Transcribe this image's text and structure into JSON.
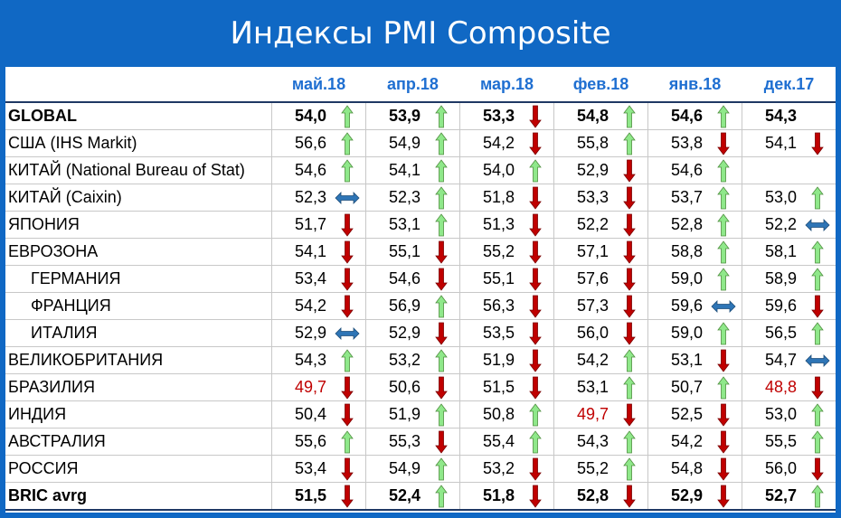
{
  "title": "Индексы PMI Composite",
  "chart_data": {
    "type": "table",
    "columns": [
      "май.18",
      "апр.18",
      "мар.18",
      "фев.18",
      "янв.18",
      "дек.17"
    ],
    "rows": [
      {
        "name": "GLOBAL",
        "bold": true,
        "indent": false,
        "values": [
          "54,0",
          "53,9",
          "53,3",
          "54,8",
          "54,6",
          "54,3"
        ],
        "trends": [
          "up",
          "up",
          "down",
          "up",
          "up",
          ""
        ],
        "red": [
          false,
          false,
          false,
          false,
          false,
          false
        ]
      },
      {
        "name": "США (IHS Markit)",
        "bold": false,
        "indent": false,
        "values": [
          "56,6",
          "54,9",
          "54,2",
          "55,8",
          "53,8",
          "54,1"
        ],
        "trends": [
          "up",
          "up",
          "down",
          "up",
          "down",
          "down"
        ],
        "red": [
          false,
          false,
          false,
          false,
          false,
          false
        ]
      },
      {
        "name": "КИТАЙ (National Bureau of Stat)",
        "bold": false,
        "indent": false,
        "values": [
          "54,6",
          "54,1",
          "54,0",
          "52,9",
          "54,6",
          ""
        ],
        "trends": [
          "up",
          "up",
          "up",
          "down",
          "up",
          ""
        ],
        "red": [
          false,
          false,
          false,
          false,
          false,
          false
        ]
      },
      {
        "name": "КИТАЙ (Caixin)",
        "bold": false,
        "indent": false,
        "values": [
          "52,3",
          "52,3",
          "51,8",
          "53,3",
          "53,7",
          "53,0"
        ],
        "trends": [
          "flat",
          "up",
          "down",
          "down",
          "up",
          "up"
        ],
        "red": [
          false,
          false,
          false,
          false,
          false,
          false
        ]
      },
      {
        "name": "ЯПОНИЯ",
        "bold": false,
        "indent": false,
        "values": [
          "51,7",
          "53,1",
          "51,3",
          "52,2",
          "52,8",
          "52,2"
        ],
        "trends": [
          "down",
          "up",
          "down",
          "down",
          "up",
          "flat"
        ],
        "red": [
          false,
          false,
          false,
          false,
          false,
          false
        ]
      },
      {
        "name": "ЕВРОЗОНА",
        "bold": false,
        "indent": false,
        "values": [
          "54,1",
          "55,1",
          "55,2",
          "57,1",
          "58,8",
          "58,1"
        ],
        "trends": [
          "down",
          "down",
          "down",
          "down",
          "up",
          "up"
        ],
        "red": [
          false,
          false,
          false,
          false,
          false,
          false
        ]
      },
      {
        "name": "ГЕРМАНИЯ",
        "bold": false,
        "indent": true,
        "values": [
          "53,4",
          "54,6",
          "55,1",
          "57,6",
          "59,0",
          "58,9"
        ],
        "trends": [
          "down",
          "down",
          "down",
          "down",
          "up",
          "up"
        ],
        "red": [
          false,
          false,
          false,
          false,
          false,
          false
        ]
      },
      {
        "name": "ФРАНЦИЯ",
        "bold": false,
        "indent": true,
        "values": [
          "54,2",
          "56,9",
          "56,3",
          "57,3",
          "59,6",
          "59,6"
        ],
        "trends": [
          "down",
          "up",
          "down",
          "down",
          "flat",
          "down"
        ],
        "red": [
          false,
          false,
          false,
          false,
          false,
          false
        ]
      },
      {
        "name": "ИТАЛИЯ",
        "bold": false,
        "indent": true,
        "values": [
          "52,9",
          "52,9",
          "53,5",
          "56,0",
          "59,0",
          "56,5"
        ],
        "trends": [
          "flat",
          "down",
          "down",
          "down",
          "up",
          "up"
        ],
        "red": [
          false,
          false,
          false,
          false,
          false,
          false
        ]
      },
      {
        "name": "ВЕЛИКОБРИТАНИЯ",
        "bold": false,
        "indent": false,
        "values": [
          "54,3",
          "53,2",
          "51,9",
          "54,2",
          "53,1",
          "54,7"
        ],
        "trends": [
          "up",
          "up",
          "down",
          "up",
          "down",
          "flat"
        ],
        "red": [
          false,
          false,
          false,
          false,
          false,
          false
        ]
      },
      {
        "name": "БРАЗИЛИЯ",
        "bold": false,
        "indent": false,
        "values": [
          "49,7",
          "50,6",
          "51,5",
          "53,1",
          "50,7",
          "48,8"
        ],
        "trends": [
          "down",
          "down",
          "down",
          "up",
          "up",
          "down"
        ],
        "red": [
          true,
          false,
          false,
          false,
          false,
          true
        ]
      },
      {
        "name": "ИНДИЯ",
        "bold": false,
        "indent": false,
        "values": [
          "50,4",
          "51,9",
          "50,8",
          "49,7",
          "52,5",
          "53,0"
        ],
        "trends": [
          "down",
          "up",
          "up",
          "down",
          "down",
          "up"
        ],
        "red": [
          false,
          false,
          false,
          true,
          false,
          false
        ]
      },
      {
        "name": "АВСТРАЛИЯ",
        "bold": false,
        "indent": false,
        "values": [
          "55,6",
          "55,3",
          "55,4",
          "54,3",
          "54,2",
          "55,5"
        ],
        "trends": [
          "up",
          "down",
          "up",
          "up",
          "down",
          "up"
        ],
        "red": [
          false,
          false,
          false,
          false,
          false,
          false
        ]
      },
      {
        "name": "РОССИЯ",
        "bold": false,
        "indent": false,
        "values": [
          "53,4",
          "54,9",
          "53,2",
          "55,2",
          "54,8",
          "56,0"
        ],
        "trends": [
          "down",
          "up",
          "down",
          "up",
          "down",
          "down"
        ],
        "red": [
          false,
          false,
          false,
          false,
          false,
          false
        ]
      },
      {
        "name": "BRIC avrg",
        "bold": true,
        "indent": false,
        "values": [
          "51,5",
          "52,4",
          "51,8",
          "52,8",
          "52,9",
          "52,7"
        ],
        "trends": [
          "down",
          "up",
          "down",
          "down",
          "down",
          "up"
        ],
        "red": [
          false,
          false,
          false,
          false,
          false,
          false
        ]
      }
    ]
  },
  "colors": {
    "frame": "#1068c4",
    "header_text": "#1f6fd1",
    "up_arrow": "#8fe88a",
    "down_arrow": "#c00000",
    "flat_arrow": "#2e75b6",
    "negative_text": "#c00000"
  },
  "icons": {
    "up": "arrow-up-icon",
    "down": "arrow-down-icon",
    "flat": "arrow-left-right-icon"
  }
}
